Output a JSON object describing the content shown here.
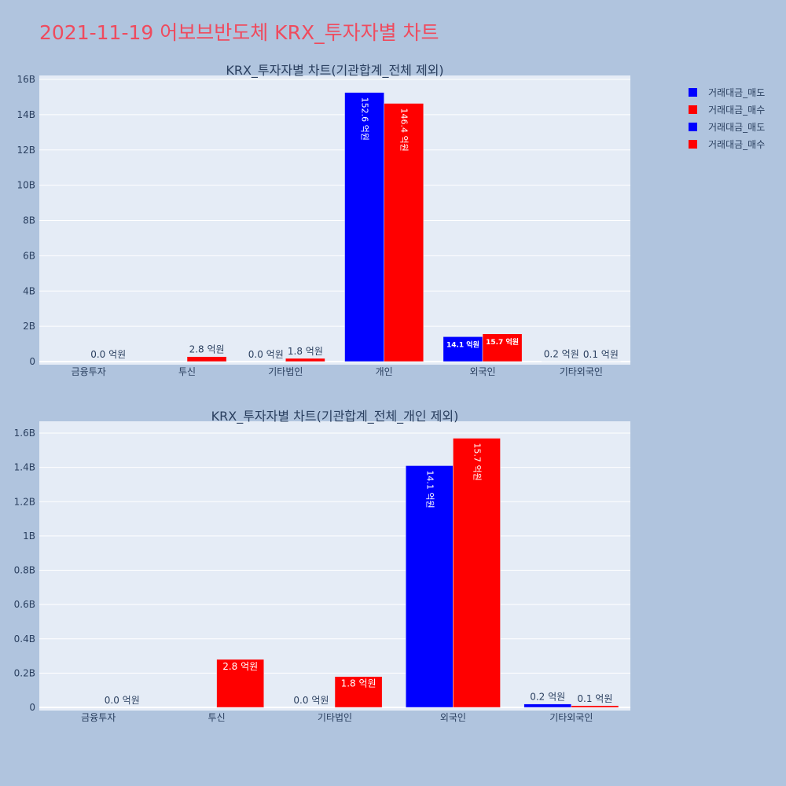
{
  "page": {
    "title": "2021-11-19 어보브반도체 KRX_투자자별 차트",
    "background_color": "#b0c4de",
    "plot_background_color": "#e5ecf6",
    "title_color": "#ef4b5e"
  },
  "legend": {
    "placement": "top-right outside",
    "entries": [
      {
        "label": "거래대금_매도",
        "color": "#0000ff"
      },
      {
        "label": "거래대금_매수",
        "color": "#ff0000"
      },
      {
        "label": "거래대금_매도",
        "color": "#0000ff"
      },
      {
        "label": "거래대금_매수",
        "color": "#ff0000"
      }
    ]
  },
  "chart_data": [
    {
      "type": "bar",
      "title": "KRX_투자자별 차트(기관합계_전체 제외)",
      "categories": [
        "금융투자",
        "투신",
        "기타법인",
        "개인",
        "외국인",
        "기타외국인"
      ],
      "ylim": [
        0,
        16000000000
      ],
      "yticks": [
        0,
        2000000000,
        4000000000,
        6000000000,
        8000000000,
        10000000000,
        12000000000,
        14000000000,
        16000000000
      ],
      "ytick_labels": [
        "0",
        "2B",
        "4B",
        "6B",
        "8B",
        "10B",
        "12B",
        "14B",
        "16B"
      ],
      "grid": true,
      "series": [
        {
          "name": "거래대금_매도",
          "color": "#0000ff",
          "values": [
            null,
            null,
            0,
            15260000000,
            1410000000,
            20000000
          ],
          "labels": [
            "",
            "",
            "0.0 억원",
            "152.6 억원",
            "14.1 억원",
            "0.2 억원"
          ]
        },
        {
          "name": "거래대금_매수",
          "color": "#ff0000",
          "values": [
            0,
            280000000,
            180000000,
            14640000000,
            1570000000,
            10000000
          ],
          "labels": [
            "0.0 억원",
            "2.8 억원",
            "1.8 억원",
            "146.4 억원",
            "15.7 억원",
            "0.1 억원"
          ]
        }
      ]
    },
    {
      "type": "bar",
      "title": "KRX_투자자별 차트(기관합계_전체_개인 제외)",
      "categories": [
        "금융투자",
        "투신",
        "기타법인",
        "외국인",
        "기타외국인"
      ],
      "ylim": [
        0,
        1600000000
      ],
      "yticks": [
        0,
        200000000,
        400000000,
        600000000,
        800000000,
        1000000000,
        1200000000,
        1400000000,
        1600000000
      ],
      "ytick_labels": [
        "0",
        "0.2B",
        "0.4B",
        "0.6B",
        "0.8B",
        "1B",
        "1.2B",
        "1.4B",
        "1.6B"
      ],
      "grid": true,
      "series": [
        {
          "name": "거래대금_매도",
          "color": "#0000ff",
          "values": [
            null,
            null,
            0,
            1410000000,
            20000000
          ],
          "labels": [
            "",
            "",
            "0.0 억원",
            "14.1 억원",
            "0.2 억원"
          ]
        },
        {
          "name": "거래대금_매수",
          "color": "#ff0000",
          "values": [
            0,
            280000000,
            180000000,
            1570000000,
            10000000
          ],
          "labels": [
            "0.0 억원",
            "2.8 억원",
            "1.8 억원",
            "15.7 억원",
            "0.1 억원"
          ]
        }
      ]
    }
  ]
}
